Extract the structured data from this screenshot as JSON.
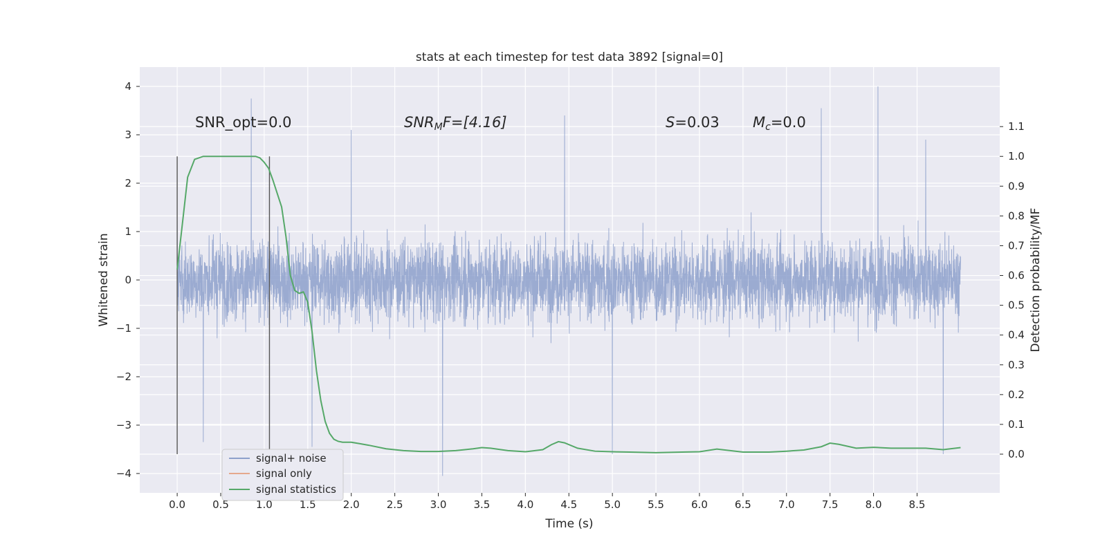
{
  "chart_data": {
    "type": "line",
    "title": "stats at each timestep for test data 3892 [signal=0]",
    "xlabel": "Time (s)",
    "ylabel": "Whitened strain",
    "y2label": "Detection probability/MF",
    "xlim": [
      -0.43,
      9.45
    ],
    "ylim": [
      -4.4,
      4.4
    ],
    "y2lim": [
      -0.13,
      1.3
    ],
    "x_ticks": [
      0.0,
      0.5,
      1.0,
      1.5,
      2.0,
      2.5,
      3.0,
      3.5,
      4.0,
      4.5,
      5.0,
      5.5,
      6.0,
      6.5,
      7.0,
      7.5,
      8.0,
      8.5
    ],
    "x_tick_labels": [
      "0.0",
      "0.5",
      "1.0",
      "1.5",
      "2.0",
      "2.5",
      "3.0",
      "3.5",
      "4.0",
      "4.5",
      "5.0",
      "5.5",
      "6.0",
      "6.5",
      "7.0",
      "7.5",
      "8.0",
      "8.5"
    ],
    "y_ticks": [
      4,
      3,
      2,
      1,
      0,
      -1,
      -2,
      -3,
      -4
    ],
    "y_tick_labels": [
      "4",
      "3",
      "2",
      "1",
      "0",
      "−1",
      "−2",
      "−3",
      "−4"
    ],
    "y2_ticks": [
      1.1,
      1.0,
      0.9,
      0.8,
      0.7,
      0.6,
      0.5,
      0.4,
      0.3,
      0.2,
      0.1,
      0.0
    ],
    "y2_tick_labels": [
      "1.1",
      "1.0",
      "0.9",
      "0.8",
      "0.7",
      "0.6",
      "0.5",
      "0.4",
      "0.3",
      "0.2",
      "0.1",
      "0.0"
    ],
    "grid": true,
    "legend_position": "lower-left",
    "annotations": {
      "snr_opt": "SNR_opt=0.0",
      "snr_mf_label": "SNR",
      "snr_mf_sub": "M",
      "snr_mf_suffix": "F=[4.16]",
      "s_label": "S",
      "s_value": "=0.03",
      "mc_label": "M",
      "mc_sub": "c",
      "mc_value": "=0.0"
    },
    "vertical_lines_x": [
      0.0,
      1.06
    ],
    "series": [
      {
        "name": "signal+ noise",
        "color": "#8da0cb",
        "axis": "left",
        "x_range": [
          0.0,
          9.0
        ],
        "approx_amplitude": 1.25,
        "peaks": [
          {
            "x": 0.85,
            "y": 3.75
          },
          {
            "x": 2.0,
            "y": 3.1
          },
          {
            "x": 4.45,
            "y": 3.4
          },
          {
            "x": 7.4,
            "y": 3.55
          },
          {
            "x": 8.05,
            "y": 4.0
          },
          {
            "x": 8.6,
            "y": 2.9
          }
        ],
        "troughs": [
          {
            "x": 0.3,
            "y": -3.35
          },
          {
            "x": 1.55,
            "y": -3.45
          },
          {
            "x": 3.05,
            "y": -4.05
          },
          {
            "x": 5.0,
            "y": -3.6
          },
          {
            "x": 8.8,
            "y": -3.6
          }
        ]
      },
      {
        "name": "signal only",
        "color": "#e5a88c",
        "axis": "left",
        "x": [],
        "y": []
      },
      {
        "name": "signal statistics",
        "color": "#55a868",
        "axis": "right",
        "x": [
          0.0,
          0.07,
          0.12,
          0.2,
          0.3,
          0.4,
          0.6,
          0.8,
          0.9,
          0.95,
          1.0,
          1.05,
          1.1,
          1.2,
          1.25,
          1.3,
          1.35,
          1.4,
          1.45,
          1.5,
          1.55,
          1.6,
          1.65,
          1.7,
          1.75,
          1.8,
          1.85,
          1.9,
          2.0,
          2.1,
          2.2,
          2.4,
          2.6,
          2.8,
          3.0,
          3.2,
          3.4,
          3.5,
          3.6,
          3.8,
          4.0,
          4.2,
          4.3,
          4.38,
          4.45,
          4.6,
          4.8,
          5.0,
          5.2,
          5.5,
          5.8,
          6.0,
          6.2,
          6.5,
          6.8,
          7.0,
          7.2,
          7.4,
          7.5,
          7.6,
          7.8,
          8.0,
          8.2,
          8.4,
          8.6,
          8.8,
          9.0
        ],
        "y": [
          0.62,
          0.8,
          0.93,
          0.99,
          1.0,
          1.0,
          1.0,
          1.0,
          1.0,
          0.995,
          0.98,
          0.96,
          0.92,
          0.83,
          0.73,
          0.6,
          0.55,
          0.54,
          0.545,
          0.51,
          0.41,
          0.28,
          0.18,
          0.11,
          0.07,
          0.05,
          0.043,
          0.04,
          0.04,
          0.035,
          0.03,
          0.018,
          0.012,
          0.009,
          0.009,
          0.012,
          0.018,
          0.022,
          0.02,
          0.012,
          0.008,
          0.015,
          0.032,
          0.042,
          0.038,
          0.02,
          0.01,
          0.008,
          0.007,
          0.005,
          0.007,
          0.008,
          0.017,
          0.007,
          0.007,
          0.01,
          0.014,
          0.025,
          0.037,
          0.033,
          0.02,
          0.023,
          0.02,
          0.02,
          0.02,
          0.015,
          0.022
        ]
      }
    ]
  }
}
